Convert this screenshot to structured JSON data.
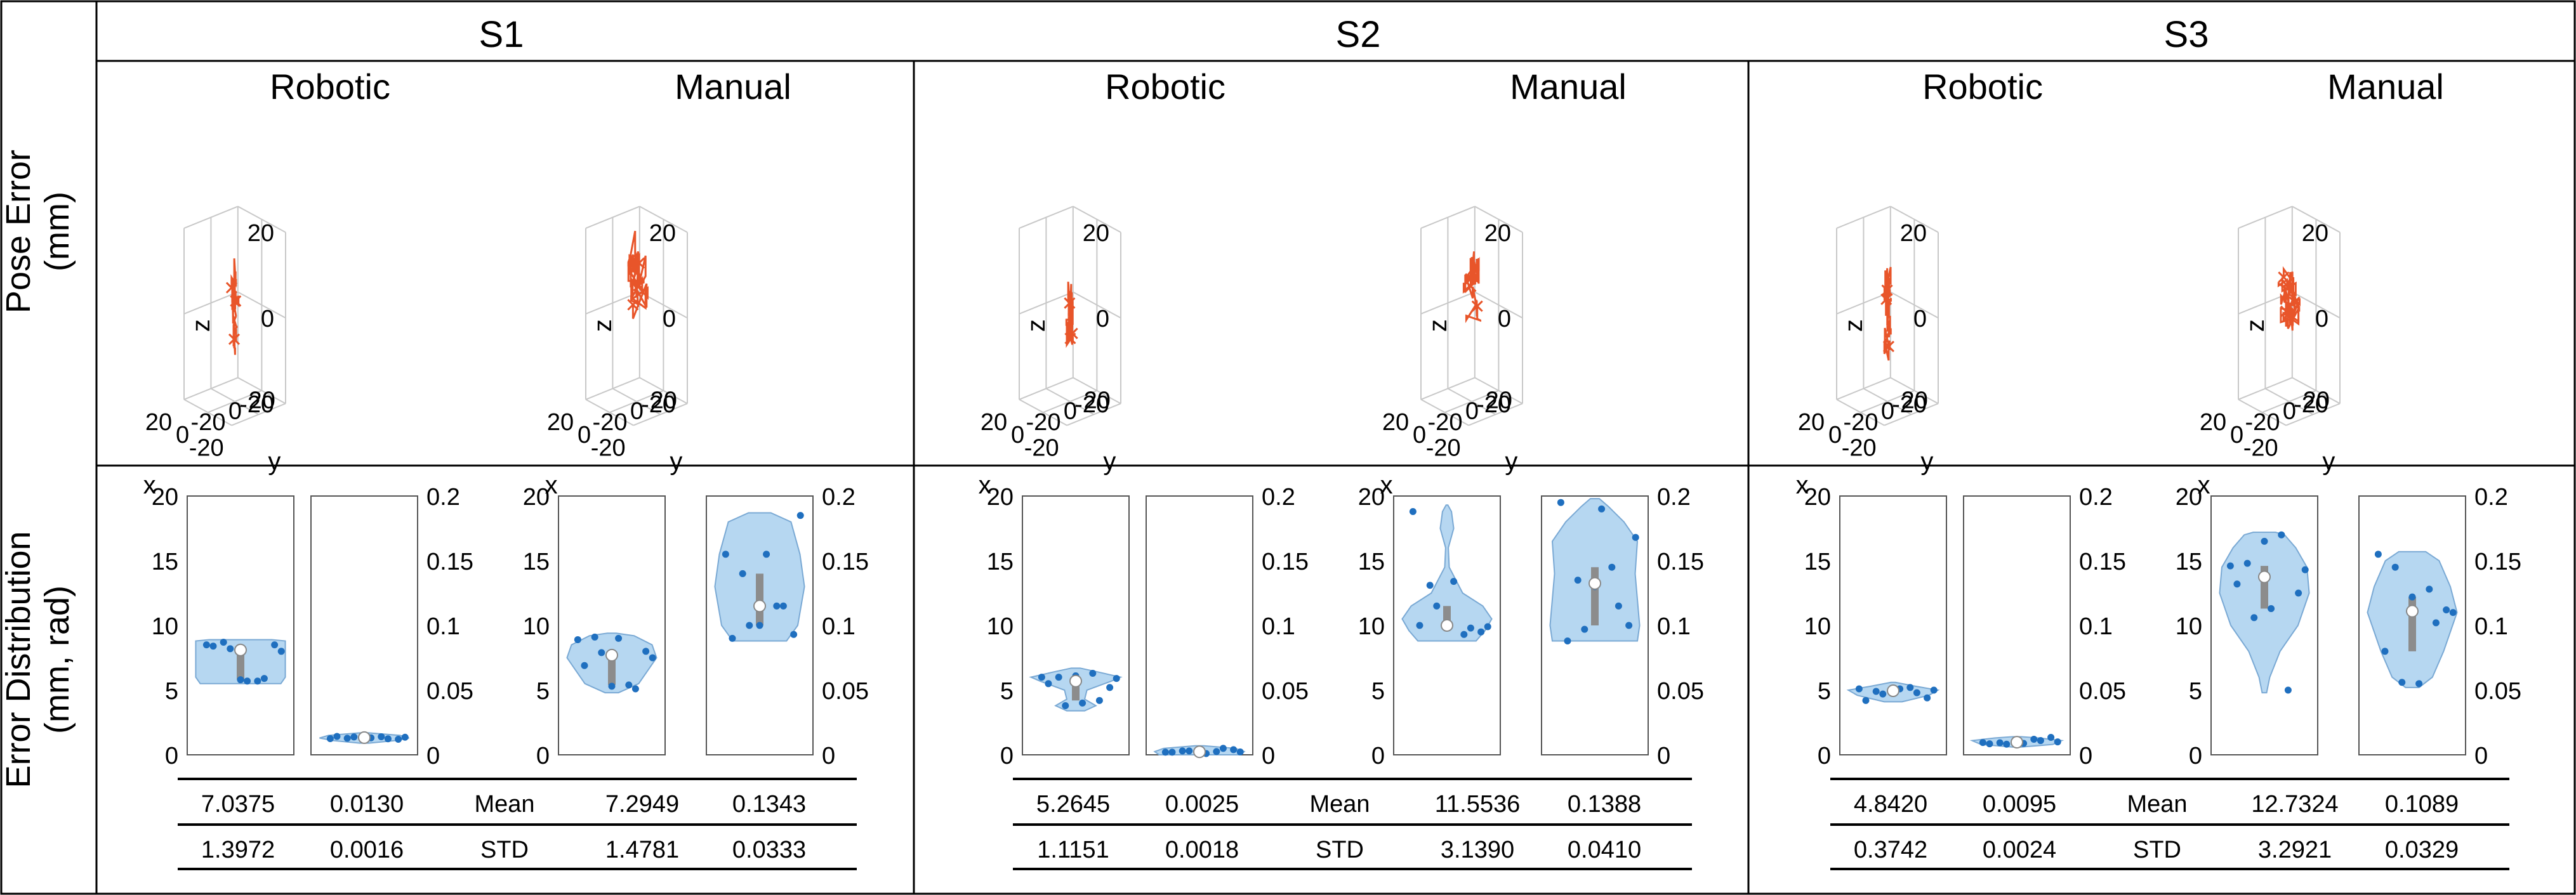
{
  "figure": {
    "row_labels": {
      "pose": [
        "Pose Error",
        "(mm)"
      ],
      "dist": [
        "Error Distribution",
        "(mm, rad)"
      ]
    },
    "sub_labels": [
      "Robotic",
      "Manual"
    ],
    "stats_labels": [
      "Mean",
      "STD"
    ],
    "axis_letters": {
      "x": "x",
      "y": "y",
      "z": "z"
    },
    "tick_labels_3d": {
      "z": [
        "20",
        "0",
        "-20"
      ],
      "x": [
        "-20",
        "0",
        "20"
      ],
      "y": [
        "-20",
        "0",
        "20"
      ]
    },
    "left_ticks": [
      "20",
      "15",
      "10",
      "5",
      "0"
    ],
    "right_ticks": [
      "0.2",
      "0.15",
      "0.1",
      "0.05",
      "0"
    ],
    "colors": {
      "trajectory": "#E8552A",
      "violin_fill": "#A9D0EE",
      "violin_edge": "#7AA9D4",
      "dot": "#1F6FBF",
      "box": "#8C8C8C",
      "median": "#FFFFFF"
    }
  },
  "chart_data": {
    "type": "violin",
    "ylim_left": [
      0,
      20
    ],
    "ylim_right": [
      0,
      0.2
    ],
    "ylabel_left": "mm",
    "ylabel_right": "rad",
    "subjects": [
      {
        "name": "S1",
        "robotic": {
          "pos": {
            "mean": "7.0375",
            "std": "1.3972",
            "points": [
              8.5,
              8.7,
              5.8,
              5.7,
              8.5,
              8.4,
              8.2,
              5.7,
              5.9,
              8.0
            ],
            "shape": [
              [
                5.5,
                0.9
              ],
              [
                6,
                1
              ],
              [
                7,
                1
              ],
              [
                8,
                1
              ],
              [
                8.8,
                1
              ],
              [
                8.9,
                0.7
              ]
            ]
          },
          "rot": {
            "mean": "0.0130",
            "std": "0.0016",
            "points": [
              0.0125,
              0.0128,
              0.0135,
              0.014,
              0.012,
              0.0142,
              0.0138,
              0.0131,
              0.0124,
              0.0136
            ],
            "shape": [
              [
                0.009,
                0.1
              ],
              [
                0.011,
                0.7
              ],
              [
                0.013,
                1
              ],
              [
                0.015,
                0.8
              ],
              [
                0.017,
                0.1
              ]
            ]
          }
        },
        "manual": {
          "pos": {
            "mean": "7.2949",
            "std": "1.4781",
            "points": [
              8.9,
              9.1,
              5.3,
              5.4,
              8.0,
              6.9,
              7.9,
              9.0,
              5.1,
              7.5
            ],
            "shape": [
              [
                4.8,
                0.15
              ],
              [
                5.5,
                0.6
              ],
              [
                6.5,
                0.8
              ],
              [
                7.5,
                1
              ],
              [
                8.5,
                0.9
              ],
              [
                9.2,
                0.5
              ],
              [
                9.4,
                0.1
              ]
            ]
          },
          "rot": {
            "mean": "0.1343",
            "std": "0.0333",
            "points": [
              0.155,
              0.14,
              0.1,
              0.115,
              0.093,
              0.09,
              0.1,
              0.155,
              0.115,
              0.185
            ],
            "shape": [
              [
                0.088,
                0.6
              ],
              [
                0.1,
                0.85
              ],
              [
                0.13,
                1
              ],
              [
                0.155,
                0.9
              ],
              [
                0.18,
                0.7
              ],
              [
                0.187,
                0.25
              ]
            ]
          }
        }
      },
      {
        "name": "S2",
        "robotic": {
          "pos": {
            "mean": "5.2645",
            "std": "1.1151",
            "points": [
              6.0,
              6.0,
              6.1,
              6.3,
              5.2,
              5.5,
              3.8,
              4.0,
              4.2,
              5.9
            ],
            "shape": [
              [
                3.4,
                0.2
              ],
              [
                3.8,
                0.45
              ],
              [
                4.3,
                0.2
              ],
              [
                5.0,
                0.25
              ],
              [
                5.7,
                0.8
              ],
              [
                6.0,
                1
              ],
              [
                6.4,
                0.5
              ],
              [
                6.7,
                0.1
              ]
            ]
          },
          "rot": {
            "mean": "0.0025",
            "std": "0.0018",
            "points": [
              0.002,
              0.003,
              0.0015,
              0.0025,
              0.004,
              0.002,
              0.003,
              0.001,
              0.005,
              0.0022
            ],
            "shape": [
              [
                0.0,
                0.9
              ],
              [
                0.0025,
                1
              ],
              [
                0.005,
                0.8
              ],
              [
                0.007,
                0.1
              ]
            ]
          }
        },
        "manual": {
          "pos": {
            "mean": "11.5536",
            "std": "3.1390",
            "points": [
              18.8,
              13.1,
              10.0,
              9.3,
              9.5,
              10.0,
              11.5,
              13.4,
              9.8,
              9.9
            ],
            "shape": [
              [
                8.8,
                0.65
              ],
              [
                9.6,
                0.85
              ],
              [
                10.5,
                1
              ],
              [
                11.5,
                0.8
              ],
              [
                12.5,
                0.35
              ],
              [
                13.5,
                0.2
              ],
              [
                14.5,
                0.05
              ],
              [
                16.0,
                0.03
              ],
              [
                17.5,
                0.15
              ],
              [
                18.8,
                0.1
              ],
              [
                19.3,
                0.02
              ]
            ]
          },
          "rot": {
            "mean": "0.1388",
            "std": "0.0410",
            "points": [
              0.195,
              0.135,
              0.13,
              0.145,
              0.1,
              0.088,
              0.097,
              0.19,
              0.115,
              0.168
            ],
            "shape": [
              [
                0.088,
                0.95
              ],
              [
                0.1,
                1
              ],
              [
                0.12,
                0.95
              ],
              [
                0.14,
                0.9
              ],
              [
                0.165,
                0.95
              ],
              [
                0.18,
                0.65
              ],
              [
                0.192,
                0.3
              ],
              [
                0.198,
                0.1
              ]
            ]
          }
        }
      },
      {
        "name": "S3",
        "robotic": {
          "pos": {
            "mean": "4.8420",
            "std": "0.3742",
            "points": [
              5.1,
              4.9,
              5.0,
              5.2,
              4.4,
              4.2,
              4.7,
              5.1,
              4.8,
              5.0
            ],
            "shape": [
              [
                4.1,
                0.2
              ],
              [
                4.6,
                0.8
              ],
              [
                5.0,
                1
              ],
              [
                5.3,
                0.5
              ],
              [
                5.6,
                0.05
              ]
            ]
          },
          "rot": {
            "mean": "0.0095",
            "std": "0.0024",
            "points": [
              0.0095,
              0.0093,
              0.0105,
              0.012,
              0.0135,
              0.0085,
              0.0082,
              0.0088,
              0.011,
              0.01
            ],
            "shape": [
              [
                0.006,
                0.1
              ],
              [
                0.008,
                0.8
              ],
              [
                0.011,
                1
              ],
              [
                0.013,
                0.5
              ],
              [
                0.014,
                0.1
              ]
            ]
          }
        },
        "manual": {
          "pos": {
            "mean": "12.7324",
            "std": "3.2921",
            "points": [
              14.6,
              14.8,
              16.5,
              17.0,
              12.5,
              13.2,
              10.6,
              11.3,
              5.0,
              14.3
            ],
            "shape": [
              [
                4.8,
                0.05
              ],
              [
                6.0,
                0.12
              ],
              [
                8.0,
                0.35
              ],
              [
                10.0,
                0.75
              ],
              [
                12.5,
                1
              ],
              [
                14.5,
                0.95
              ],
              [
                16.0,
                0.7
              ],
              [
                17.0,
                0.45
              ],
              [
                17.2,
                0.25
              ]
            ]
          },
          "rot": {
            "mean": "0.1089",
            "std": "0.0329",
            "points": [
              0.155,
              0.145,
              0.122,
              0.128,
              0.112,
              0.08,
              0.056,
              0.055,
              0.102,
              0.11
            ],
            "shape": [
              [
                0.052,
                0.15
              ],
              [
                0.06,
                0.45
              ],
              [
                0.08,
                0.7
              ],
              [
                0.1,
                0.9
              ],
              [
                0.11,
                1
              ],
              [
                0.13,
                0.85
              ],
              [
                0.15,
                0.6
              ],
              [
                0.157,
                0.3
              ]
            ]
          }
        }
      }
    ]
  }
}
